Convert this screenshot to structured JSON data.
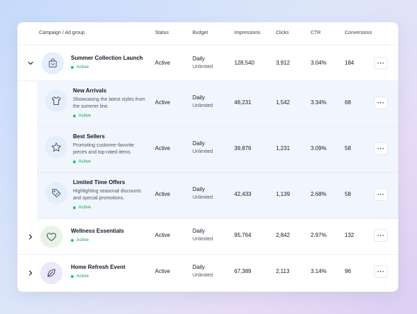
{
  "columns": {
    "campaign": "Campaign / Ad group",
    "status": "Status",
    "budget": "Budget",
    "impressions": "Impressions",
    "clicks": "Clicks",
    "ctr": "CTR",
    "conversions": "Conversions"
  },
  "rows": [
    {
      "name": "Summer Collection Launch",
      "state": "Active",
      "status": "Active",
      "budget_type": "Daily",
      "budget_value": "Unlimited",
      "impressions": "128,540",
      "clicks": "3,912",
      "ctr": "3.04%",
      "conversions": "184",
      "icon": "shopping-bag-icon",
      "expanded": true
    },
    {
      "name": "New Arrivals",
      "desc": "Showcasing the latest styles from the summer line.",
      "state": "Active",
      "status": "Active",
      "budget_type": "Daily",
      "budget_value": "Unlimited",
      "impressions": "46,231",
      "clicks": "1,542",
      "ctr": "3.34%",
      "conversions": "68",
      "icon": "shirt-icon"
    },
    {
      "name": "Best Sellers",
      "desc": "Promoting customer-favorite pieces and top-rated items.",
      "state": "Active",
      "status": "Active",
      "budget_type": "Daily",
      "budget_value": "Unlimited",
      "impressions": "39,876",
      "clicks": "1,231",
      "ctr": "3.09%",
      "conversions": "58",
      "icon": "star-icon"
    },
    {
      "name": "Limited Time Offers",
      "desc": "Highlighting seasonal discounts and special promotions.",
      "state": "Active",
      "status": "Active",
      "budget_type": "Daily",
      "budget_value": "Unlimited",
      "impressions": "42,433",
      "clicks": "1,139",
      "ctr": "2.68%",
      "conversions": "58",
      "icon": "tag-icon"
    },
    {
      "name": "Wellness Essentials",
      "state": "Active",
      "status": "Active",
      "budget_type": "Daily",
      "budget_value": "Unlimited",
      "impressions": "95,764",
      "clicks": "2,842",
      "ctr": "2.97%",
      "conversions": "132",
      "icon": "heart-icon",
      "expanded": false
    },
    {
      "name": "Home Refresh Event",
      "state": "Active",
      "status": "Active",
      "budget_type": "Daily",
      "budget_value": "Unlimited",
      "impressions": "67,389",
      "clicks": "2,113",
      "ctr": "3.14%",
      "conversions": "96",
      "icon": "leaf-icon",
      "expanded": false
    }
  ],
  "more_label": "···",
  "colors": {
    "active_green": "#16a34a",
    "child_row_bg": "#f1f6fe",
    "icon_bg_blue": "#e5eefb",
    "icon_bg_green": "#e8f3e6",
    "icon_bg_purple": "#ece7fb"
  }
}
